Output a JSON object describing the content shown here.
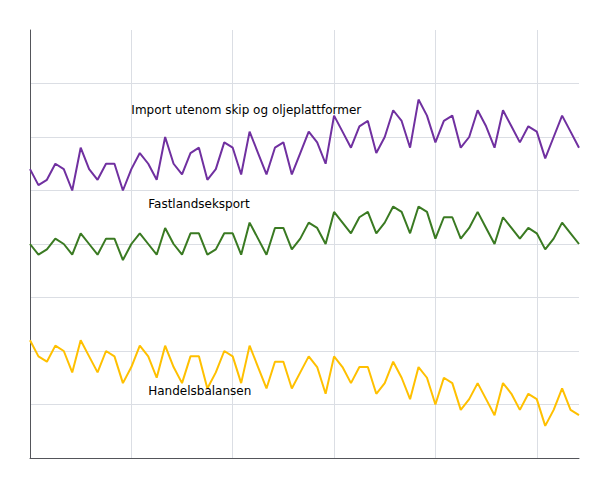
{
  "chart_data": {
    "type": "line",
    "x": [
      0,
      1,
      2,
      3,
      4,
      5,
      6,
      7,
      8,
      9,
      10,
      11,
      12,
      13,
      14,
      15,
      16,
      17,
      18,
      19,
      20,
      21,
      22,
      23,
      24,
      25,
      26,
      27,
      28,
      29,
      30,
      31,
      32,
      33,
      34,
      35,
      36,
      37,
      38,
      39,
      40,
      41,
      42,
      43,
      44,
      45,
      46,
      47,
      48,
      49,
      50,
      51,
      52,
      53,
      54,
      55,
      56,
      57,
      58,
      59,
      60,
      61,
      62,
      63,
      64,
      65
    ],
    "series": [
      {
        "color": "#7030A0",
        "values": [
          54,
          51,
          52,
          55,
          54,
          50,
          58,
          54,
          52,
          55,
          55,
          50,
          54,
          57,
          55,
          52,
          60,
          55,
          53,
          57,
          58,
          52,
          54,
          59,
          58,
          53,
          61,
          57,
          53,
          58,
          59,
          53,
          57,
          61,
          59,
          55,
          64,
          61,
          58,
          62,
          63,
          57,
          60,
          65,
          63,
          58,
          67,
          64,
          59,
          63,
          64,
          58,
          60,
          65,
          62,
          58,
          65,
          62,
          59,
          62,
          61,
          56,
          60,
          64,
          61,
          58
        ]
      },
      {
        "color": "#3a7a22",
        "values": [
          40,
          38,
          39,
          41,
          40,
          38,
          42,
          40,
          38,
          41,
          41,
          37,
          40,
          42,
          40,
          38,
          43,
          40,
          38,
          42,
          42,
          38,
          39,
          42,
          42,
          38,
          44,
          41,
          38,
          43,
          43,
          39,
          41,
          44,
          43,
          40,
          46,
          44,
          42,
          45,
          46,
          42,
          44,
          47,
          46,
          42,
          47,
          46,
          41,
          45,
          45,
          41,
          43,
          46,
          43,
          40,
          45,
          43,
          41,
          43,
          42,
          39,
          41,
          44,
          42,
          40
        ]
      },
      {
        "color": "#FFC000",
        "values": [
          22,
          19,
          18,
          21,
          20,
          16,
          22,
          19,
          16,
          20,
          19,
          14,
          17,
          21,
          19,
          15,
          21,
          17,
          14,
          19,
          19,
          13,
          16,
          20,
          19,
          14,
          21,
          17,
          13,
          18,
          18,
          13,
          16,
          19,
          17,
          12,
          19,
          17,
          14,
          17,
          17,
          12,
          14,
          18,
          15,
          11,
          17,
          15,
          10,
          15,
          14,
          9,
          11,
          14,
          11,
          8,
          14,
          12,
          9,
          12,
          11,
          6,
          9,
          13,
          9,
          8
        ]
      }
    ],
    "annotations": [
      {
        "text": "Import utenom skip og oljeplattformer",
        "x": 12,
        "y": 63.5
      },
      {
        "text": "Fastlandseksport",
        "x": 14,
        "y": 46
      },
      {
        "text": "Handelsbalansen",
        "x": 14,
        "y": 11
      }
    ],
    "xlim": [
      0,
      65
    ],
    "xticks": [
      0,
      12,
      24,
      36,
      48,
      60
    ],
    "ylim": [
      0,
      80
    ],
    "yticks": [
      10,
      20,
      30,
      40,
      50,
      60,
      70
    ],
    "grid": true,
    "tick_labels": false
  }
}
